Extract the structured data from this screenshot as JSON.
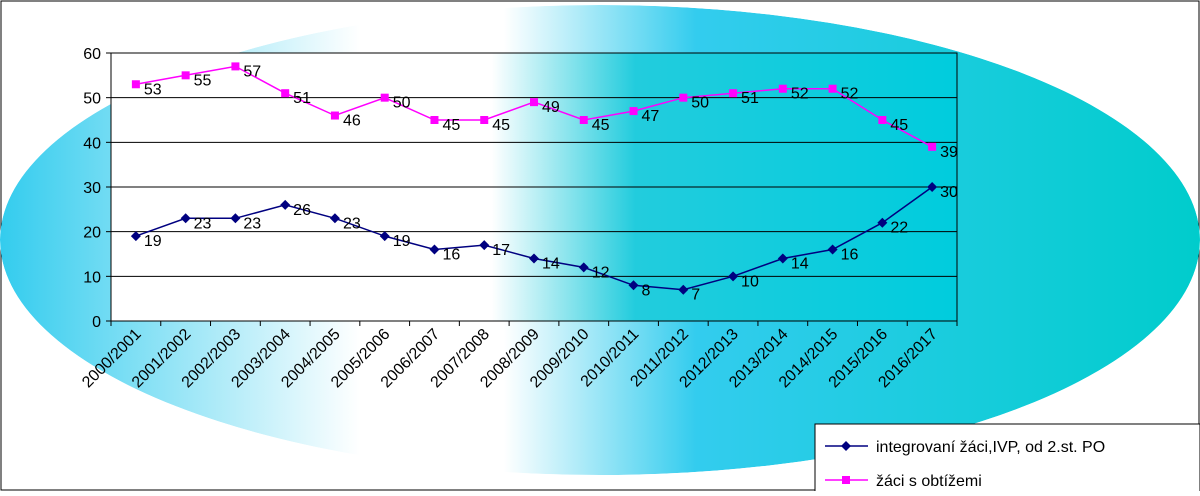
{
  "chart_data": {
    "type": "line",
    "categories": [
      "2000/2001",
      "2001/2002",
      "2002/2003",
      "2003/2004",
      "2004/2005",
      "2005/2006",
      "2006/2007",
      "2007/2008",
      "2008/2009",
      "2009/2010",
      "2010/2011",
      "2011/2012",
      "2012/2013",
      "2013/2014",
      "2014/2015",
      "2015/2016",
      "2016/2017"
    ],
    "series": [
      {
        "name": "integrovaní žáci,IVP, od 2.st. PO",
        "color": "#000080",
        "marker": "diamond",
        "values": [
          19,
          23,
          23,
          26,
          23,
          19,
          16,
          17,
          14,
          12,
          8,
          7,
          10,
          14,
          16,
          22,
          30
        ]
      },
      {
        "name": "žáci s obtížemi",
        "color": "#ff00ff",
        "marker": "square",
        "values": [
          53,
          55,
          57,
          51,
          46,
          50,
          45,
          45,
          49,
          45,
          47,
          50,
          51,
          52,
          52,
          45,
          39
        ]
      }
    ],
    "yticks": [
      "0",
      "10",
      "20",
      "30",
      "40",
      "50",
      "60"
    ],
    "ylim": [
      0,
      60
    ],
    "grid": true,
    "legend_position": "bottom-right"
  }
}
